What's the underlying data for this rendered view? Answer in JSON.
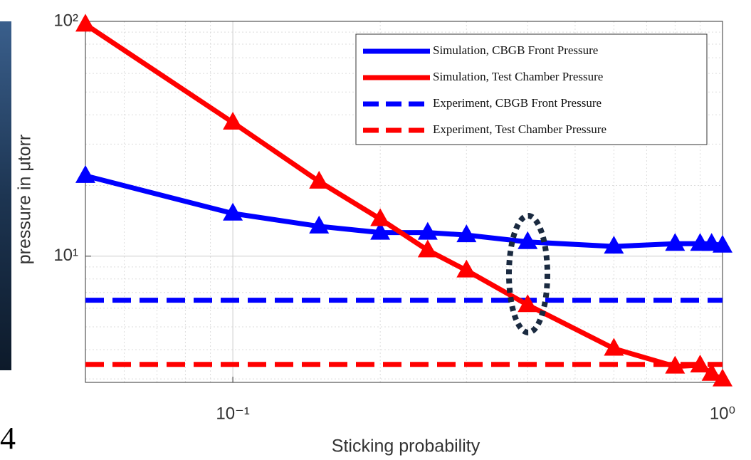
{
  "panel_label": "4",
  "chart_data": {
    "type": "line",
    "xlabel": "Sticking probability",
    "ylabel": "pressure in μtorr",
    "xscale": "log",
    "yscale": "log",
    "xlim": [
      0.05,
      1
    ],
    "ylim": [
      2.9,
      100
    ],
    "xticks": [
      {
        "value": 0.1,
        "label": "10⁻¹"
      },
      {
        "value": 1,
        "label": "10⁰"
      }
    ],
    "yticks": [
      {
        "value": 10,
        "label": "10¹"
      },
      {
        "value": 100,
        "label": "10²"
      }
    ],
    "grid": true,
    "minor_grid": true,
    "legend": "upper right",
    "x": [
      0.05,
      0.1,
      0.15,
      0.2,
      0.25,
      0.3,
      0.4,
      0.6,
      0.8,
      0.9,
      0.95,
      1.0
    ],
    "series": [
      {
        "name": "Simulation, CBGB Front Pressure",
        "color": "#0000ff",
        "style": "solid",
        "marker": "triangle",
        "values": [
          22,
          15.2,
          13.4,
          12.6,
          12.6,
          12.3,
          11.5,
          11.0,
          11.3,
          11.3,
          11.3,
          11.1
        ]
      },
      {
        "name": "Simulation, Test Chamber Pressure",
        "color": "#ff0000",
        "style": "solid",
        "marker": "triangle",
        "values": [
          97,
          37.1,
          20.8,
          14.4,
          10.6,
          8.7,
          6.2,
          4.04,
          3.39,
          3.43,
          3.16,
          2.99
        ]
      },
      {
        "name": "Experiment, CBGB Front Pressure",
        "color": "#0000ff",
        "style": "dashed",
        "x": [
          0.05,
          1
        ],
        "values": [
          6.49,
          6.49
        ]
      },
      {
        "name": "Experiment, Test Chamber Pressure",
        "color": "#ff0000",
        "style": "dashed",
        "x": [
          0.05,
          1
        ],
        "values": [
          3.46,
          3.46
        ]
      }
    ]
  }
}
